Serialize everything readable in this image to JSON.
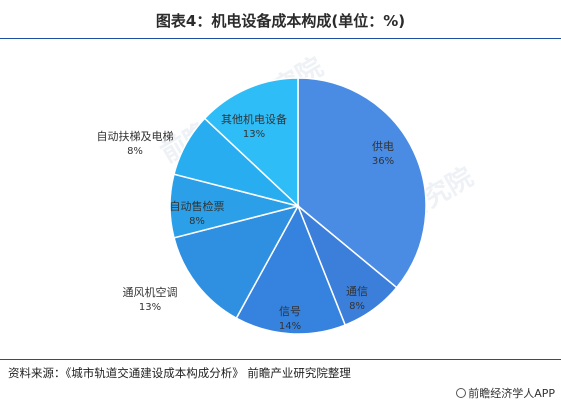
{
  "title": "图表4：机电设备成本构成(单位：%)",
  "source": "资料来源：《城市轨道交通建设成本构成分析》 前瞻产业研究院整理",
  "brand": "前瞻经济学人APP",
  "watermark": "前瞻产业研究院",
  "chart_data": {
    "type": "pie",
    "title": "图表4：机电设备成本构成(单位：%)",
    "unit": "%",
    "slices": [
      {
        "label": "供电",
        "value": 36,
        "value_label": "36%",
        "color": "#4a8ce4"
      },
      {
        "label": "通信",
        "value": 8,
        "value_label": "8%",
        "color": "#3b7fda"
      },
      {
        "label": "信号",
        "value": 14,
        "value_label": "14%",
        "color": "#3582df"
      },
      {
        "label": "通风机空调",
        "value": 13,
        "value_label": "13%",
        "color": "#2f8fe0"
      },
      {
        "label": "自动售检票",
        "value": 8,
        "value_label": "8%",
        "color": "#2ba0e8"
      },
      {
        "label": "自动扶梯及电梯",
        "value": 8,
        "value_label": "8%",
        "color": "#28aef0"
      },
      {
        "label": "其他机电设备",
        "value": 13,
        "value_label": "13%",
        "color": "#2fbdf7"
      }
    ]
  }
}
